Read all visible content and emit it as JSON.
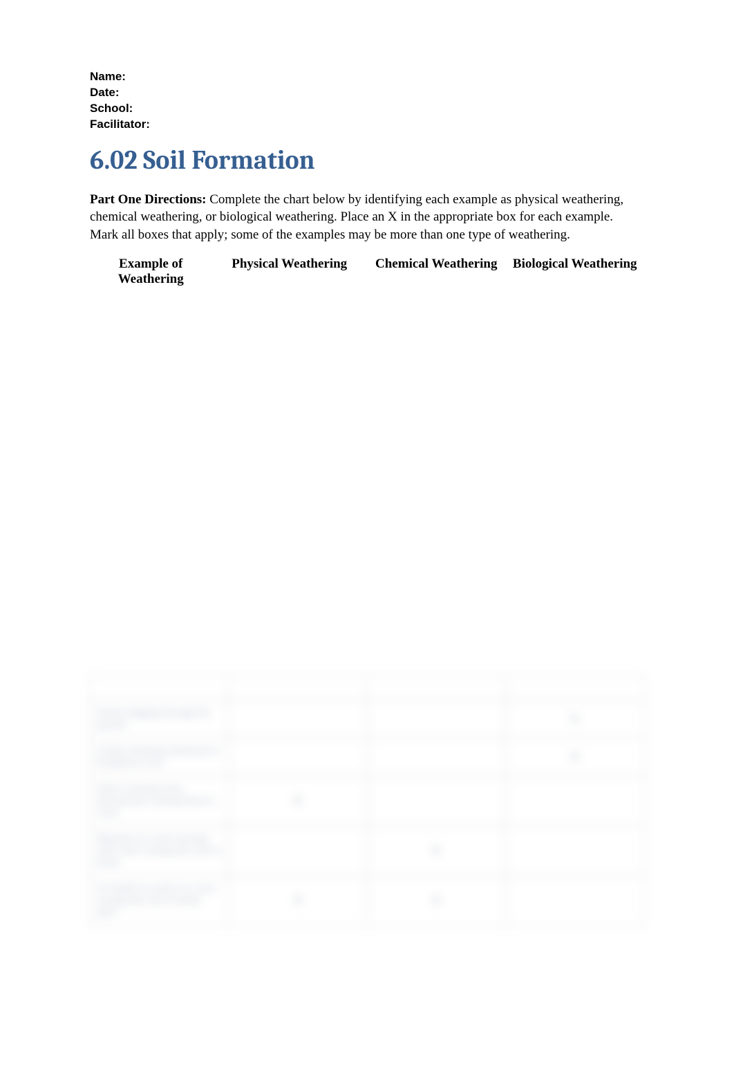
{
  "meta": {
    "name_label": "Name:",
    "date_label": "Date:",
    "school_label": "School:",
    "facilitator_label": "Facilitator:",
    "name_value": "",
    "date_value": "",
    "school_value": "",
    "facilitator_value": ""
  },
  "title": "6.02 Soil Formation",
  "colors": {
    "title_color": "#365f91",
    "text_color": "#000000",
    "background": "#ffffff",
    "blur_text": "#7a8aa0",
    "table_border": "#b0b0b0"
  },
  "typography": {
    "title_fontsize_pt": 28,
    "title_fontfamily": "Cambria",
    "body_fontsize_pt": 14,
    "body_fontfamily": "Georgia",
    "meta_fontfamily": "Arial",
    "meta_fontsize_pt": 13
  },
  "directions": {
    "lead": "Part One Directions:",
    "text": " Complete the chart below by identifying each example as physical weathering, chemical weathering, or biological weathering. Place an X in the appropriate box for each example. Mark all boxes that apply; some of the examples may be more than one type of weathering."
  },
  "table": {
    "columns": [
      "Example of Weathering",
      "Physical Weathering",
      "Chemical Weathering",
      "Biological Weathering"
    ],
    "column_widths_pct": [
      22,
      28,
      25,
      25
    ],
    "blurred": true,
    "rows": [
      {
        "example": "",
        "physical": "",
        "chemical": "",
        "biological": ""
      },
      {
        "example": "Worms digging through the ground",
        "physical": "",
        "chemical": "",
        "biological": "X"
      },
      {
        "example": "Lichen releasing chemicals to breakdown rock",
        "physical": "",
        "chemical": "",
        "biological": "X"
      },
      {
        "example": "Water carrying rocks downstream causing them to crack",
        "physical": "X",
        "chemical": "",
        "biological": ""
      },
      {
        "example": "Minerals in a rock reacting with water causing the rock to break",
        "physical": "",
        "chemical": "X",
        "biological": ""
      },
      {
        "example": "Ice builds in cracks in a rock causing the rock to break apart",
        "physical": "X",
        "chemical": "X",
        "biological": ""
      }
    ]
  }
}
